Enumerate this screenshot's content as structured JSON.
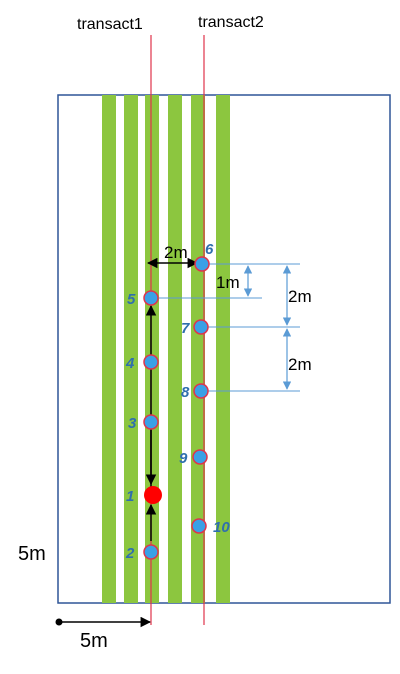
{
  "transects": [
    {
      "label": "transact1",
      "color": "#e0344b"
    },
    {
      "label": "transact2",
      "color": "#e0344b"
    }
  ],
  "strip_color": "#8cc63f",
  "plot_border_color": "#2f5597",
  "dimension_labels": {
    "gap_horizontal": "2m",
    "gap_one": "1m",
    "gap_two_a": "2m",
    "gap_two_b": "2m",
    "plot_height": "5m",
    "plot_offset": "5m"
  },
  "points": [
    {
      "id": "1",
      "label": "1",
      "fill": "#ff0000",
      "size": "large"
    },
    {
      "id": "2",
      "label": "2",
      "fill": "#3aa0e6"
    },
    {
      "id": "3",
      "label": "3",
      "fill": "#3aa0e6"
    },
    {
      "id": "4",
      "label": "4",
      "fill": "#3aa0e6"
    },
    {
      "id": "5",
      "label": "5",
      "fill": "#3aa0e6"
    },
    {
      "id": "6",
      "label": "6",
      "fill": "#3aa0e6"
    },
    {
      "id": "7",
      "label": "7",
      "fill": "#3aa0e6"
    },
    {
      "id": "8",
      "label": "8",
      "fill": "#3aa0e6"
    },
    {
      "id": "9",
      "label": "9",
      "fill": "#3aa0e6"
    },
    {
      "id": "10",
      "label": "10",
      "fill": "#3aa0e6"
    }
  ]
}
